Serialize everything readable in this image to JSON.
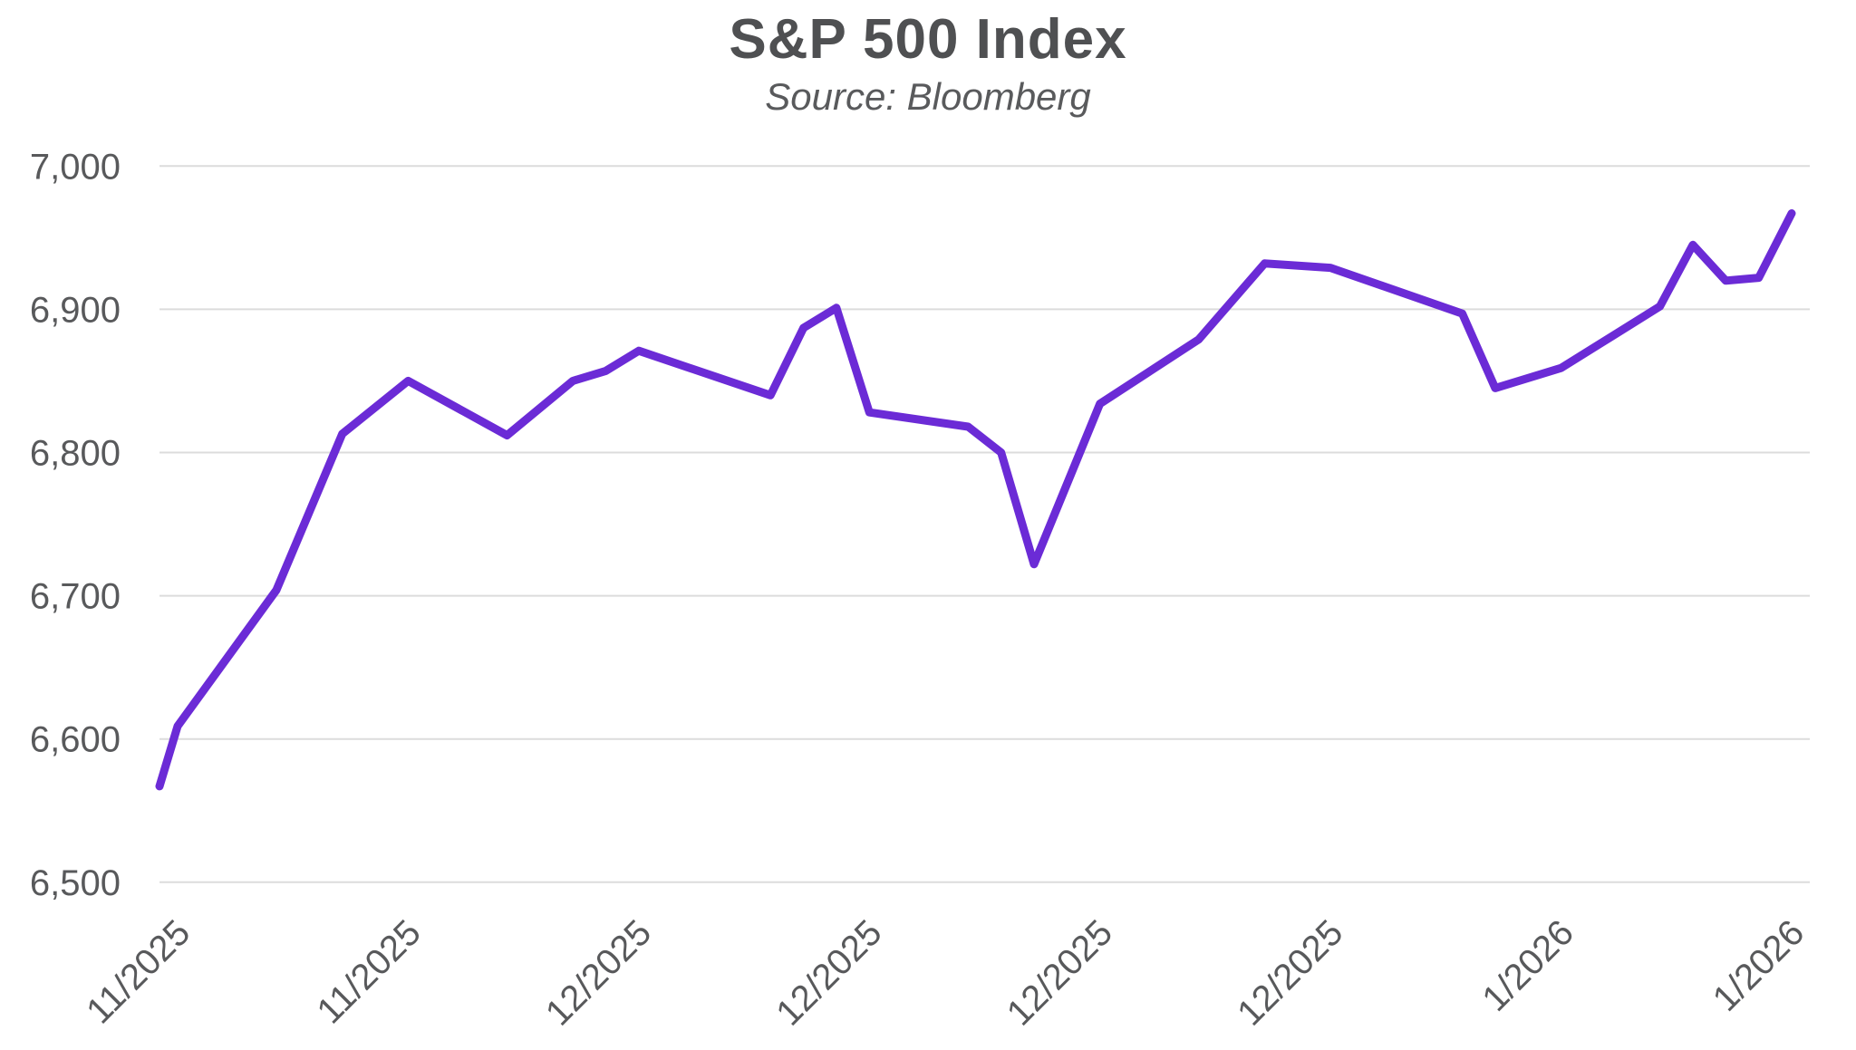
{
  "header": {
    "title": "S&P 500 Index",
    "subtitle": "Source: Bloomberg"
  },
  "chart_data": {
    "type": "line",
    "title": "S&P 500 Index",
    "subtitle": "Source: Bloomberg",
    "xlabel": "",
    "ylabel": "",
    "ylim": [
      6500,
      7000
    ],
    "y_ticks": [
      7000,
      6900,
      6800,
      6700,
      6600,
      6500
    ],
    "grid": "horizontal-only",
    "legend": "none",
    "x_axis_unit": "days (weekly tick labels, month/year format)",
    "x_range_days": [
      -0.55,
      49.55
    ],
    "x_ticks": [
      {
        "d": 0,
        "label": "11/2025"
      },
      {
        "d": 7,
        "label": "11/2025"
      },
      {
        "d": 14,
        "label": "12/2025"
      },
      {
        "d": 21,
        "label": "12/2025"
      },
      {
        "d": 28,
        "label": "12/2025"
      },
      {
        "d": 35,
        "label": "12/2025"
      },
      {
        "d": 42,
        "label": "1/2026"
      },
      {
        "d": 49,
        "label": "1/2026"
      }
    ],
    "series": [
      {
        "name": "S&P 500 Index",
        "points": [
          {
            "d": -0.55,
            "v": 6567
          },
          {
            "d": 0,
            "v": 6609
          },
          {
            "d": 3,
            "v": 6704
          },
          {
            "d": 5,
            "v": 6813
          },
          {
            "d": 7,
            "v": 6850
          },
          {
            "d": 10,
            "v": 6812
          },
          {
            "d": 12,
            "v": 6850
          },
          {
            "d": 13,
            "v": 6857
          },
          {
            "d": 14,
            "v": 6871
          },
          {
            "d": 18,
            "v": 6840
          },
          {
            "d": 19,
            "v": 6887
          },
          {
            "d": 20,
            "v": 6901
          },
          {
            "d": 21,
            "v": 6828
          },
          {
            "d": 24,
            "v": 6818
          },
          {
            "d": 25,
            "v": 6800
          },
          {
            "d": 26,
            "v": 6722
          },
          {
            "d": 28,
            "v": 6834
          },
          {
            "d": 31,
            "v": 6879
          },
          {
            "d": 33,
            "v": 6932
          },
          {
            "d": 35,
            "v": 6929
          },
          {
            "d": 39,
            "v": 6897
          },
          {
            "d": 40,
            "v": 6845
          },
          {
            "d": 42,
            "v": 6859
          },
          {
            "d": 45,
            "v": 6902
          },
          {
            "d": 46,
            "v": 6945
          },
          {
            "d": 47,
            "v": 6920
          },
          {
            "d": 48,
            "v": 6922
          },
          {
            "d": 49,
            "v": 6967
          }
        ]
      }
    ],
    "colors": {
      "line": "#6b2bd6",
      "grid": "#dcdcdc",
      "tick_label": "#58595b",
      "title": "#4f5052",
      "subtitle": "#595a5c",
      "background": "#ffffff"
    }
  }
}
